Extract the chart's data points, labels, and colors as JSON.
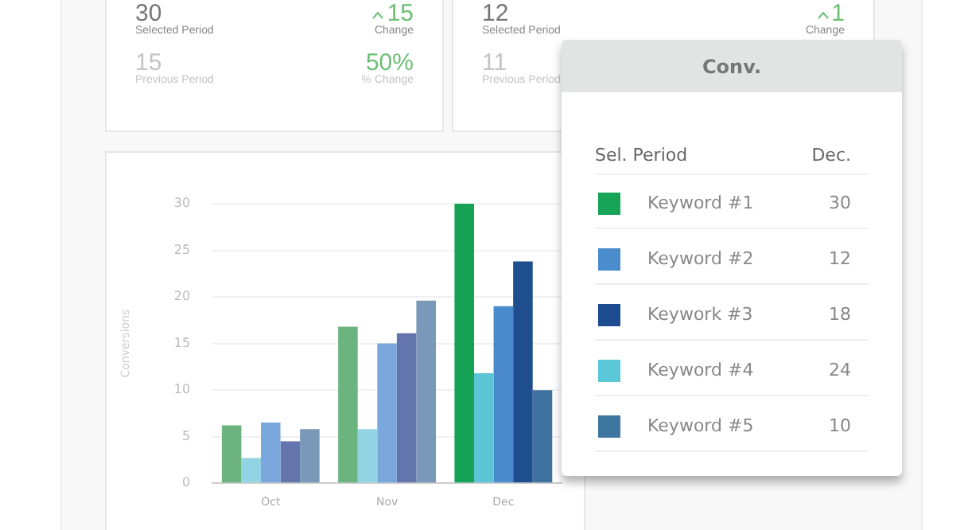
{
  "chart_data": [
    {
      "type": "other",
      "annotations": [
        "30",
        "Selected Period",
        "15",
        "Change",
        "15",
        "Previous Period",
        "50%",
        "% Change"
      ]
    },
    {
      "type": "other",
      "annotations": [
        "12",
        "Selected Period",
        "1",
        "Change",
        "11",
        "Previous Period"
      ]
    },
    {
      "type": "bar",
      "ylabel": "Conversions",
      "categories": [
        "Oct",
        "Nov",
        "Dec"
      ],
      "ylim": [
        0,
        30
      ],
      "yticks": [
        0,
        5,
        10,
        15,
        20,
        25,
        30
      ],
      "grid": "y",
      "series": [
        {
          "colors": [
            "#6db37f",
            "#6db37f",
            "#16a356"
          ],
          "values": [
            6.2,
            16.8,
            30
          ]
        },
        {
          "colors": [
            "#93d4e4",
            "#93d4e4",
            "#5bc5d6"
          ],
          "values": [
            2.7,
            5.8,
            11.8
          ]
        },
        {
          "colors": [
            "#7aa7dc",
            "#7aa7dc",
            "#4a8acc"
          ],
          "values": [
            6.5,
            15,
            19
          ]
        },
        {
          "colors": [
            "#6474ad",
            "#6474ad",
            "#1f4e8f"
          ],
          "values": [
            4.5,
            16.1,
            23.8
          ]
        },
        {
          "colors": [
            "#7a98b8",
            "#7a98b8",
            "#3e73a0"
          ],
          "values": [
            5.8,
            19.6,
            10
          ]
        }
      ]
    },
    {
      "type": "other",
      "title": "Conv.",
      "colors": [
        "#17a457",
        "#4a8ccc",
        "#1d4b8f",
        "#5bc8d8",
        "#3f76a0"
      ],
      "annotations": [
        "Sel. Period",
        "Dec.",
        "Keyword #1",
        "30",
        "Keyword #2",
        "12",
        "Keywork #3",
        "18",
        "Keyword #4",
        "24",
        "Keyword #5",
        "10"
      ]
    }
  ]
}
